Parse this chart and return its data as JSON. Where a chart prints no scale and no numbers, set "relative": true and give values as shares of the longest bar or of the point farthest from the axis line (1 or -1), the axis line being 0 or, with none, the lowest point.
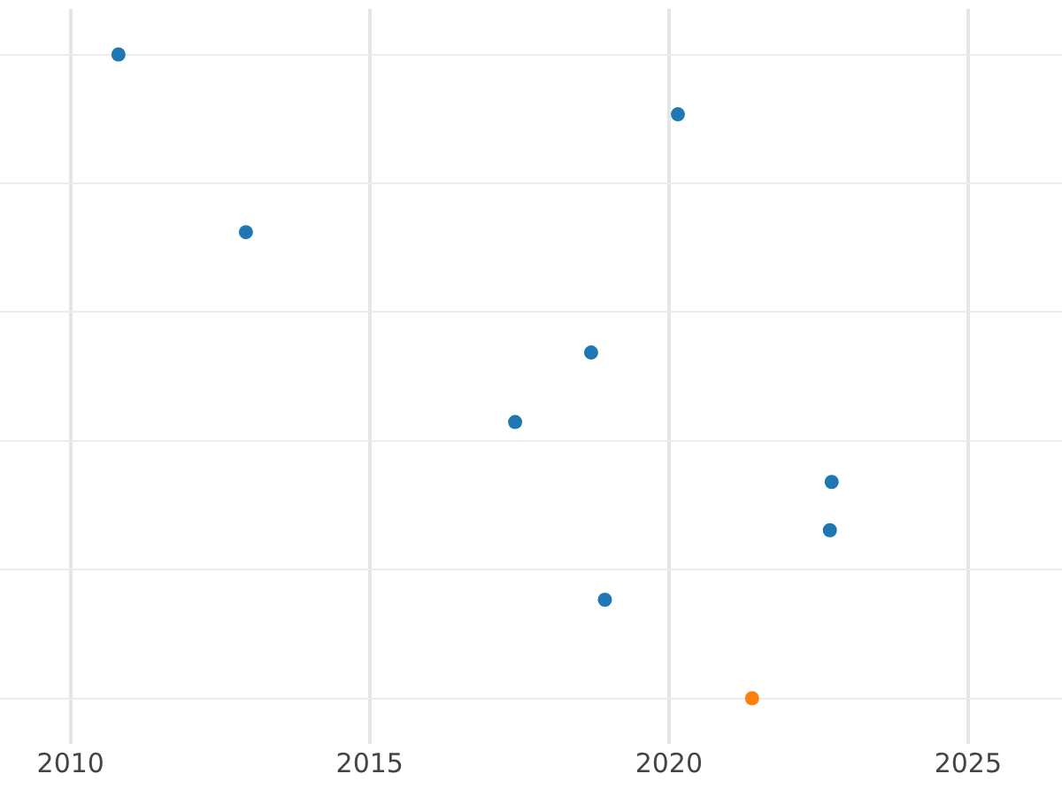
{
  "chart_data": {
    "type": "scatter",
    "relative": true,
    "x": [
      2010.8,
      2012.93,
      2020.15,
      2018.7,
      2017.43,
      2022.72,
      2022.69,
      2018.93,
      2021.39
    ],
    "values": [
      1,
      0.724,
      0.907,
      0.537,
      0.429,
      0.336,
      0.261,
      0.153,
      0
    ],
    "colors": [
      "#1f77b4",
      "#1f77b4",
      "#1f77b4",
      "#1f77b4",
      "#1f77b4",
      "#1f77b4",
      "#1f77b4",
      "#1f77b4",
      "#ff7f0e"
    ],
    "xlim": [
      2008.82,
      2026.57
    ],
    "xticks": [
      2010,
      2015,
      2020,
      2025
    ],
    "grid": true
  }
}
